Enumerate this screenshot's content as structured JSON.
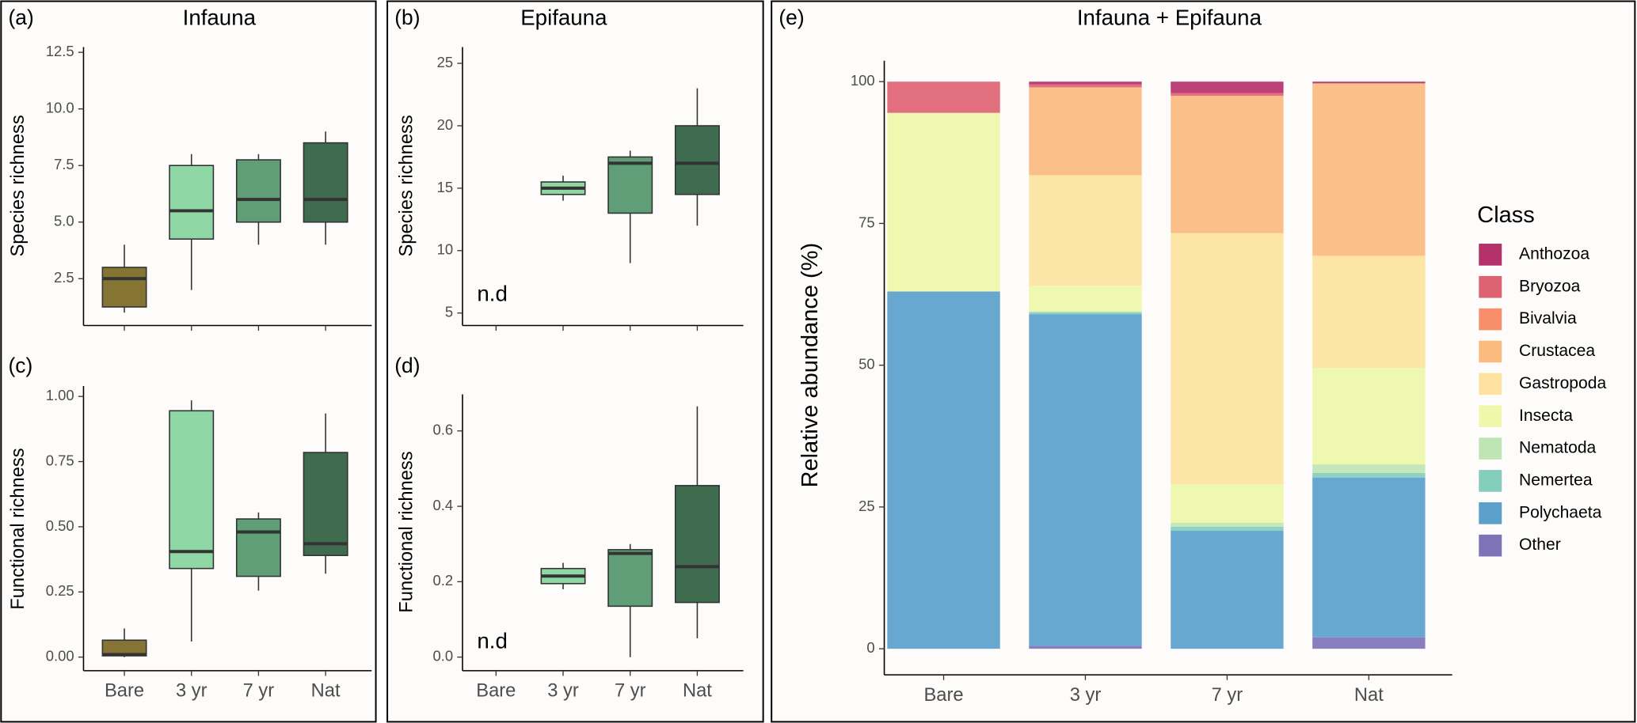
{
  "chart_data": [
    {
      "type": "box",
      "panel_label": "(a)",
      "title": "Infauna",
      "ylabel": "Species richness",
      "categories": [
        null,
        null,
        null,
        null
      ],
      "colors": [
        "#857434",
        "#8fd7a4",
        "#5f9e76",
        "#3f6b4f"
      ],
      "boxes": [
        {
          "low": 1.0,
          "q1": 1.25,
          "median": 2.5,
          "q3": 3.0,
          "high": 4.0
        },
        {
          "low": 2.0,
          "q1": 4.25,
          "median": 5.5,
          "q3": 7.5,
          "high": 8.0
        },
        {
          "low": 4.0,
          "q1": 5.0,
          "median": 6.0,
          "q3": 7.75,
          "high": 8.0
        },
        {
          "low": 4.0,
          "q1": 5.0,
          "median": 6.0,
          "q3": 8.5,
          "high": 9.0
        }
      ],
      "ylim": [
        0.43,
        12.73
      ],
      "yticks": [
        2.5,
        {
          "value": 5,
          "label": "5.0"
        },
        7.5,
        {
          "value": 10,
          "label": "10.0"
        },
        12.5
      ]
    },
    {
      "type": "box",
      "panel_label": "(b)",
      "title": "Epifauna",
      "ylabel": "Species richness",
      "annotation": "n.d",
      "categories": [
        null,
        null,
        null,
        null
      ],
      "colors": [
        "#857434",
        "#8fd7a4",
        "#5f9e76",
        "#3f6b4f"
      ],
      "boxes": [
        null,
        {
          "low": 14,
          "q1": 14.5,
          "median": 15,
          "q3": 15.5,
          "high": 16
        },
        {
          "low": 9,
          "q1": 13,
          "median": 17,
          "q3": 17.5,
          "high": 18
        },
        {
          "low": 12,
          "q1": 14.5,
          "median": 17,
          "q3": 20,
          "high": 23
        }
      ],
      "ylim": [
        4.0,
        26.3
      ],
      "yticks": [
        5,
        10,
        15,
        20,
        25
      ]
    },
    {
      "type": "box",
      "panel_label": "(c)",
      "ylabel": "Functional richness",
      "categories": [
        "Bare",
        "3 yr",
        "7 yr",
        "Nat"
      ],
      "colors": [
        "#857434",
        "#8fd7a4",
        "#5f9e76",
        "#3f6b4f"
      ],
      "boxes": [
        {
          "low": 0,
          "q1": 0.005,
          "median": 0.01,
          "q3": 0.065,
          "high": 0.11
        },
        {
          "low": 0.06,
          "q1": 0.34,
          "median": 0.405,
          "q3": 0.945,
          "high": 0.985
        },
        {
          "low": 0.255,
          "q1": 0.31,
          "median": 0.48,
          "q3": 0.53,
          "high": 0.555
        },
        {
          "low": 0.32,
          "q1": 0.39,
          "median": 0.435,
          "q3": 0.785,
          "high": 0.935
        }
      ],
      "ylim": [
        -0.052,
        1.04
      ],
      "yticks": [
        {
          "value": 0,
          "label": "0.00"
        },
        0.25,
        {
          "value": 0.5,
          "label": "0.50"
        },
        0.75,
        {
          "value": 1,
          "label": "1.00"
        }
      ]
    },
    {
      "type": "box",
      "panel_label": "(d)",
      "ylabel": "Functional richness",
      "annotation": "n.d",
      "categories": [
        "Bare",
        "3 yr",
        "7 yr",
        "Nat"
      ],
      "colors": [
        "#857434",
        "#8fd7a4",
        "#5f9e76",
        "#3f6b4f"
      ],
      "boxes": [
        null,
        {
          "low": 0.18,
          "q1": 0.195,
          "median": 0.215,
          "q3": 0.235,
          "high": 0.25
        },
        {
          "low": 0.0,
          "q1": 0.135,
          "median": 0.275,
          "q3": 0.285,
          "high": 0.3
        },
        {
          "low": 0.05,
          "q1": 0.145,
          "median": 0.24,
          "q3": 0.455,
          "high": 0.665
        }
      ],
      "ylim": [
        -0.036,
        0.697
      ],
      "yticks": [
        {
          "value": 0,
          "label": "0.0"
        },
        0.2,
        0.4,
        0.6
      ]
    },
    {
      "type": "stacked_bar",
      "panel_label": "(e)",
      "title": "Infauna  + Epifauna",
      "ylabel": "Relative abundance (%)",
      "legend_title": "Class",
      "legend": "right",
      "categories": [
        "Bare",
        "3 yr",
        "7 yr",
        "Nat"
      ],
      "series": [
        {
          "name": "Anthozoa",
          "color": "#b5316a",
          "values": [
            0,
            0.5,
            2.0,
            0.3
          ]
        },
        {
          "name": "Bryozoa",
          "color": "#de6372",
          "values": [
            5.5,
            0.5,
            0.5,
            0
          ]
        },
        {
          "name": "Bivalvia",
          "color": "#f78f6c",
          "values": [
            0,
            0,
            0,
            0
          ]
        },
        {
          "name": "Crustacea",
          "color": "#fbbb7f",
          "values": [
            0,
            15.5,
            24.2,
            30.4
          ]
        },
        {
          "name": "Gastropoda",
          "color": "#fde2a0",
          "values": [
            0,
            19.5,
            44.3,
            19.8
          ]
        },
        {
          "name": "Insecta",
          "color": "#eef7aa",
          "values": [
            31.5,
            4.5,
            6.8,
            17
          ]
        },
        {
          "name": "Nematoda",
          "color": "#bfe5b5",
          "values": [
            0,
            0.2,
            0.7,
            1.5
          ]
        },
        {
          "name": "Nemertea",
          "color": "#86cebc",
          "values": [
            0,
            0.3,
            0.7,
            0.8
          ]
        },
        {
          "name": "Polychaeta",
          "color": "#5ba0cb",
          "values": [
            63,
            58.5,
            20.8,
            28.2
          ]
        },
        {
          "name": "Other",
          "color": "#7f73b8",
          "values": [
            0,
            0.5,
            0,
            2
          ]
        }
      ],
      "ylim": [
        -4.6,
        103.7
      ],
      "yticks": [
        0,
        25,
        50,
        75,
        100
      ]
    }
  ]
}
